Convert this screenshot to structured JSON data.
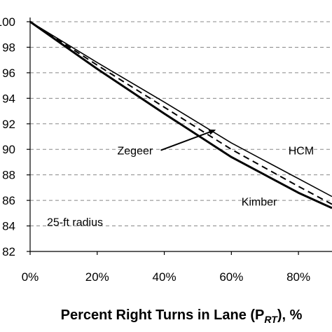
{
  "chart_data": {
    "type": "line",
    "title": "",
    "xlabel": "Percent Right Turns in Lane (P",
    "xlabel_sub": "RT",
    "xlabel_suffix": "), %",
    "ylabel": "",
    "xlim": [
      0,
      0.9
    ],
    "ylim": [
      82,
      100
    ],
    "x_ticks": [
      0,
      0.2,
      0.4,
      0.6,
      0.8
    ],
    "x_tick_labels": [
      "0%",
      "20%",
      "40%",
      "60%",
      "80%"
    ],
    "y_ticks": [
      82,
      84,
      86,
      88,
      90,
      92,
      94,
      96,
      98,
      100
    ],
    "y_tick_labels": [
      "82",
      "84",
      "86",
      "88",
      "90",
      "92",
      "94",
      "96",
      "98",
      "100"
    ],
    "grid": "horizontal dashed",
    "series": [
      {
        "name": "HCM",
        "style": "thin-solid",
        "x": [
          0,
          0.2,
          0.4,
          0.6,
          0.8,
          0.9
        ],
        "y": [
          100,
          96.8,
          93.7,
          90.5,
          87.7,
          86.3
        ]
      },
      {
        "name": "Zegeer",
        "style": "dashed",
        "x": [
          0,
          0.2,
          0.4,
          0.6,
          0.8,
          0.9
        ],
        "y": [
          100,
          96.6,
          93.3,
          90.0,
          87.1,
          85.7
        ]
      },
      {
        "name": "Kimber",
        "style": "thick-solid",
        "x": [
          0,
          0.2,
          0.4,
          0.6,
          0.8,
          0.9
        ],
        "y": [
          100,
          96.3,
          92.8,
          89.4,
          86.6,
          85.4
        ]
      }
    ],
    "annotations": [
      {
        "text": "Zegeer",
        "label_x": 0.26,
        "label_y": 89.6,
        "arrow_to_x": 0.55,
        "arrow_to_y": 91.5
      },
      {
        "text": "HCM",
        "label_x": 0.77,
        "label_y": 89.6
      },
      {
        "text": "Kimber",
        "label_x": 0.63,
        "label_y": 85.6
      },
      {
        "text": "25-ft radius",
        "label_x": 0.05,
        "label_y": 84.0
      }
    ],
    "colors": {
      "lines": "#000000",
      "grid": "#888888",
      "axis": "#000000"
    }
  }
}
